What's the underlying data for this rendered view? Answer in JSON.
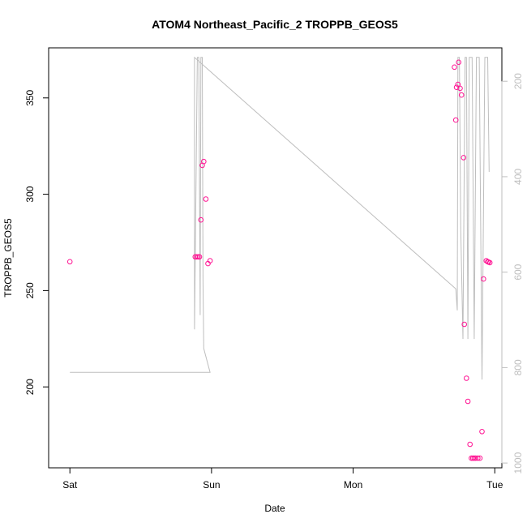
{
  "chart_data": {
    "type": "scatter",
    "title": "ATOM4 Northeast_Pacific_2 TROPPB_GEOS5",
    "xlabel": "Date",
    "ylabel": "TROPPB_GEOS5",
    "x_ticks": [
      {
        "label": "Sat",
        "value": 0
      },
      {
        "label": "Sun",
        "value": 1
      },
      {
        "label": "Mon",
        "value": 2
      },
      {
        "label": "Tue",
        "value": 3
      }
    ],
    "xlim": [
      -0.15,
      3.05
    ],
    "ylim": [
      158,
      376
    ],
    "y_ticks": [
      200,
      250,
      300,
      350
    ],
    "y2_ticks": [
      200,
      400,
      600,
      800,
      1000
    ],
    "y2lim": [
      1010,
      130
    ],
    "grid": false,
    "colors": {
      "points": "#ff1493",
      "line": "#bebebe"
    },
    "series": [
      {
        "marker": "circle",
        "points": [
          [
            0.0,
            265
          ],
          [
            0.885,
            267.5
          ],
          [
            0.895,
            267.5
          ],
          [
            0.905,
            267.5
          ],
          [
            0.915,
            267.5
          ],
          [
            0.925,
            286.7
          ],
          [
            0.935,
            315
          ],
          [
            0.945,
            317
          ],
          [
            0.96,
            297.5
          ],
          [
            0.975,
            264
          ],
          [
            0.99,
            265.5
          ],
          [
            2.715,
            366
          ],
          [
            2.725,
            338.5
          ],
          [
            2.73,
            355.5
          ],
          [
            2.74,
            357
          ],
          [
            2.745,
            368.5
          ],
          [
            2.755,
            355
          ],
          [
            2.765,
            351.5
          ],
          [
            2.78,
            319
          ],
          [
            2.785,
            232.5
          ],
          [
            2.8,
            204.5
          ],
          [
            2.81,
            192.5
          ],
          [
            2.825,
            170.2
          ],
          [
            2.835,
            163
          ],
          [
            2.845,
            163
          ],
          [
            2.855,
            163
          ],
          [
            2.865,
            163
          ],
          [
            2.88,
            163
          ],
          [
            2.895,
            163
          ],
          [
            2.91,
            176.8
          ],
          [
            2.92,
            256
          ],
          [
            2.94,
            265.5
          ],
          [
            2.95,
            265
          ],
          [
            2.955,
            264.8
          ],
          [
            2.965,
            264.5
          ]
        ]
      },
      {
        "marker": "line",
        "points": [
          [
            0.0,
            810
          ],
          [
            0.99,
            810
          ],
          [
            0.945,
            760
          ],
          [
            0.94,
            620
          ],
          [
            0.935,
            150
          ],
          [
            0.925,
            150
          ],
          [
            0.92,
            690
          ],
          [
            0.91,
            150
          ],
          [
            0.9,
            150
          ],
          [
            0.88,
            720
          ],
          [
            0.88,
            150
          ],
          [
            2.725,
            635
          ],
          [
            2.735,
            680
          ],
          [
            2.74,
            150
          ],
          [
            2.75,
            150
          ],
          [
            2.76,
            510
          ],
          [
            2.775,
            740
          ],
          [
            2.79,
            150
          ],
          [
            2.8,
            150
          ],
          [
            2.81,
            740
          ],
          [
            2.82,
            150
          ],
          [
            2.84,
            150
          ],
          [
            2.855,
            740
          ],
          [
            2.87,
            150
          ],
          [
            2.89,
            150
          ],
          [
            2.91,
            825
          ],
          [
            2.93,
            150
          ],
          [
            2.95,
            150
          ],
          [
            2.96,
            390
          ]
        ]
      }
    ]
  }
}
